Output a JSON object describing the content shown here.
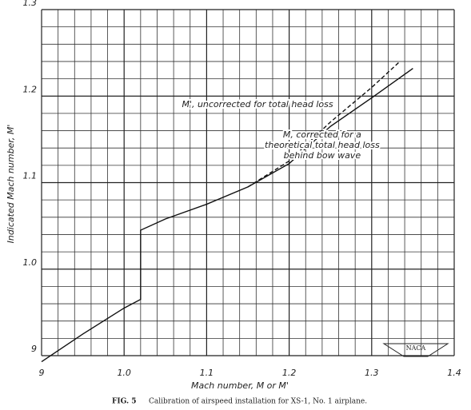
{
  "chart_data": {
    "type": "line",
    "x_label": "Mach number, M or M'",
    "y_label": "Indicated Mach number, M'",
    "caption_number": "FIG. 5",
    "caption": "Calibration of airspeed installation for XS-1, No. 1 airplane.",
    "annotations": [
      {
        "lines": [
          "M', uncorrected for total head loss"
        ],
        "x": 1.07,
        "y": 1.19
      },
      {
        "lines": [
          "M, corrected for a",
          "theoretical total head loss",
          "behind bow wave"
        ],
        "x": 1.24,
        "y": 1.155
      }
    ],
    "series": [
      {
        "color": "#111111",
        "dash": false,
        "x": [
          0.9,
          0.95,
          1.0,
          1.02,
          1.02,
          1.05,
          1.1,
          1.15,
          1.2,
          1.25,
          1.3,
          1.35
        ],
        "values": [
          0.893,
          0.925,
          0.955,
          0.965,
          1.045,
          1.058,
          1.075,
          1.095,
          1.122,
          1.165,
          1.198,
          1.232
        ]
      },
      {
        "color": "#111111",
        "dash": true,
        "x": [
          1.15,
          1.2,
          1.25,
          1.3,
          1.333
        ],
        "values": [
          1.095,
          1.125,
          1.17,
          1.21,
          1.239
        ]
      }
    ],
    "xlim": [
      0.9,
      1.4
    ],
    "ylim": [
      0.9,
      1.3
    ],
    "xticks": [
      {
        "value": 0.9,
        "label": "9"
      },
      {
        "value": 1.0,
        "label": "1.0"
      },
      1.1,
      1.2,
      1.3,
      1.4
    ],
    "yticks": [
      {
        "value": 0.9,
        "label": "9"
      },
      {
        "value": 1.0,
        "label": "1.0"
      },
      1.1,
      1.2,
      1.3
    ],
    "grid": true
  }
}
